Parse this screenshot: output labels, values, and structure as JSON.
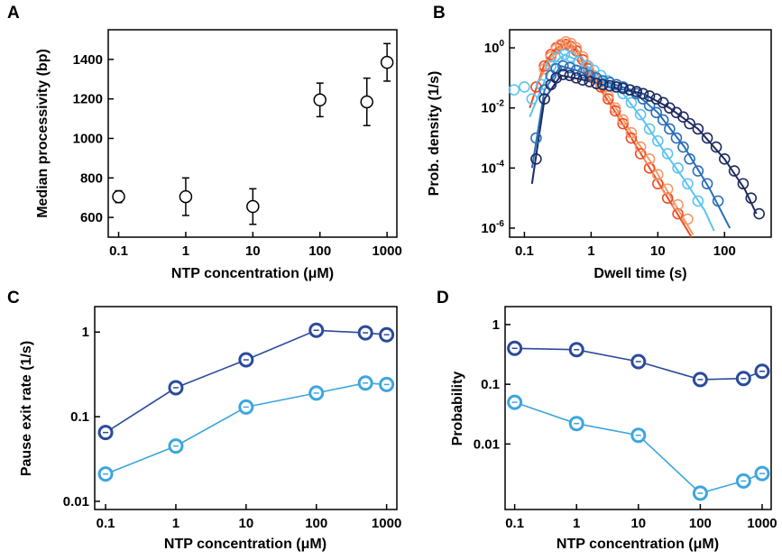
{
  "chart_data": [
    {
      "panel": "A",
      "type": "scatter",
      "xlabel": "NTP concentration (μM)",
      "ylabel": "Median processivity (bp)",
      "xscale": "log",
      "xlim": [
        0.07,
        1400
      ],
      "ylim": [
        500,
        1550
      ],
      "xticks": [
        0.1,
        1,
        10,
        100,
        1000
      ],
      "xtick_labels": [
        "0.1",
        "1",
        "10",
        "100",
        "1000"
      ],
      "yticks": [
        600,
        800,
        1000,
        1200,
        1400
      ],
      "ytick_labels": [
        "600",
        "800",
        "1000",
        "1200",
        "1400"
      ],
      "series": [
        {
          "x": [
            0.1,
            1,
            10,
            100,
            500,
            1000
          ],
          "y": [
            705,
            705,
            655,
            1195,
            1185,
            1385
          ],
          "yerr": [
            30,
            95,
            90,
            85,
            120,
            95
          ],
          "color": "#000000"
        }
      ]
    },
    {
      "panel": "B",
      "type": "scatter",
      "xlabel": "Dwell time (s)",
      "ylabel": "Prob. density (1/s)",
      "xscale": "log",
      "yscale": "log",
      "xlim": [
        0.06,
        500
      ],
      "ylim": [
        5e-07,
        4
      ],
      "xticks": [
        0.1,
        1,
        10,
        100
      ],
      "xtick_labels": [
        "0.1",
        "1",
        "10",
        "100"
      ],
      "yticks": [
        1,
        0.01,
        0.0001,
        1e-06
      ],
      "ytick_labels": [
        {
          "base": "10",
          "exp": "0"
        },
        {
          "base": "10",
          "exp": "-2"
        },
        {
          "base": "10",
          "exp": "-4"
        },
        {
          "base": "10",
          "exp": "-6"
        }
      ],
      "series": [
        {
          "color": "#ef4b24",
          "points": [
            [
              0.15,
              0.05
            ],
            [
              0.2,
              0.25
            ],
            [
              0.25,
              0.6
            ],
            [
              0.3,
              1.0
            ],
            [
              0.35,
              1.2
            ],
            [
              0.42,
              1.3
            ],
            [
              0.5,
              1.1
            ],
            [
              0.6,
              0.8
            ],
            [
              0.75,
              0.4
            ],
            [
              0.9,
              0.2
            ],
            [
              1.1,
              0.1
            ],
            [
              1.4,
              0.05
            ],
            [
              1.8,
              0.02
            ],
            [
              2.3,
              0.008
            ],
            [
              3,
              0.003
            ],
            [
              4,
              0.001
            ],
            [
              5.5,
              0.0003
            ],
            [
              7.5,
              0.0001
            ],
            [
              10,
              3e-05
            ],
            [
              14,
              1e-05
            ],
            [
              20,
              3e-06
            ]
          ],
          "fit": [
            [
              0.12,
              0.01
            ],
            [
              0.2,
              0.3
            ],
            [
              0.3,
              1.0
            ],
            [
              0.42,
              1.3
            ],
            [
              0.6,
              0.8
            ],
            [
              1,
              0.12
            ],
            [
              2,
              0.012
            ],
            [
              4,
              0.001
            ],
            [
              8,
              8e-05
            ],
            [
              15,
              8e-06
            ],
            [
              32,
              5e-07
            ]
          ]
        },
        {
          "color": "#f29a6a",
          "points": [
            [
              0.2,
              0.2
            ],
            [
              0.25,
              0.5
            ],
            [
              0.3,
              0.9
            ],
            [
              0.35,
              1.3
            ],
            [
              0.42,
              1.6
            ],
            [
              0.5,
              1.4
            ],
            [
              0.6,
              1.0
            ],
            [
              0.75,
              0.5
            ],
            [
              0.9,
              0.25
            ],
            [
              1.1,
              0.12
            ],
            [
              1.4,
              0.06
            ],
            [
              1.8,
              0.025
            ],
            [
              2.3,
              0.01
            ],
            [
              3,
              0.004
            ],
            [
              4,
              0.0015
            ],
            [
              5.5,
              0.0005
            ],
            [
              7.5,
              0.0002
            ],
            [
              10,
              6e-05
            ],
            [
              14,
              2e-05
            ],
            [
              20,
              6e-06
            ],
            [
              28,
              2e-06
            ]
          ],
          "fit": [
            [
              0.15,
              0.05
            ],
            [
              0.25,
              0.5
            ],
            [
              0.4,
              1.5
            ],
            [
              0.6,
              1.0
            ],
            [
              1,
              0.15
            ],
            [
              2,
              0.018
            ],
            [
              4,
              0.0015
            ],
            [
              8,
              0.00015
            ],
            [
              16,
              1e-05
            ],
            [
              34,
              6e-07
            ]
          ]
        },
        {
          "color": "#5bc4f0",
          "points": [
            [
              0.07,
              0.04
            ],
            [
              0.1,
              0.05
            ],
            [
              0.13,
              0.02
            ],
            [
              0.18,
              0.06
            ],
            [
              0.25,
              0.25
            ],
            [
              0.32,
              0.5
            ],
            [
              0.4,
              0.6
            ],
            [
              0.5,
              0.5
            ],
            [
              0.65,
              0.35
            ],
            [
              0.85,
              0.25
            ],
            [
              1.1,
              0.18
            ],
            [
              1.4,
              0.12
            ],
            [
              1.8,
              0.08
            ],
            [
              2.3,
              0.05
            ],
            [
              3,
              0.03
            ],
            [
              4,
              0.015
            ],
            [
              5.5,
              0.006
            ],
            [
              7.5,
              0.002
            ],
            [
              10,
              0.0008
            ],
            [
              14,
              0.0003
            ],
            [
              20,
              0.0001
            ],
            [
              28,
              3e-05
            ],
            [
              40,
              8e-06
            ]
          ],
          "fit": [
            [
              0.12,
              0.005
            ],
            [
              0.25,
              0.25
            ],
            [
              0.4,
              0.6
            ],
            [
              0.7,
              0.35
            ],
            [
              1.5,
              0.1
            ],
            [
              3,
              0.03
            ],
            [
              6,
              0.004
            ],
            [
              12,
              0.0004
            ],
            [
              25,
              4e-05
            ],
            [
              50,
              4e-06
            ],
            [
              70,
              8e-07
            ]
          ]
        },
        {
          "color": "#2a6fb8",
          "points": [
            [
              0.15,
              0.001
            ],
            [
              0.2,
              0.04
            ],
            [
              0.25,
              0.12
            ],
            [
              0.3,
              0.2
            ],
            [
              0.38,
              0.25
            ],
            [
              0.48,
              0.22
            ],
            [
              0.6,
              0.18
            ],
            [
              0.75,
              0.15
            ],
            [
              0.95,
              0.12
            ],
            [
              1.2,
              0.1
            ],
            [
              1.5,
              0.08
            ],
            [
              1.9,
              0.07
            ],
            [
              2.4,
              0.06
            ],
            [
              3,
              0.05
            ],
            [
              3.8,
              0.04
            ],
            [
              4.8,
              0.03
            ],
            [
              6,
              0.02
            ],
            [
              7.5,
              0.012
            ],
            [
              9.5,
              0.007
            ],
            [
              12,
              0.004
            ],
            [
              15,
              0.002
            ],
            [
              19,
              0.001
            ],
            [
              24,
              0.0005
            ],
            [
              30,
              0.0002
            ],
            [
              40,
              8e-05
            ],
            [
              55,
              3e-05
            ],
            [
              80,
              8e-06
            ]
          ],
          "fit": [
            [
              0.13,
              0.0001
            ],
            [
              0.2,
              0.04
            ],
            [
              0.35,
              0.25
            ],
            [
              0.6,
              0.18
            ],
            [
              1.5,
              0.08
            ],
            [
              4,
              0.04
            ],
            [
              10,
              0.007
            ],
            [
              25,
              0.0005
            ],
            [
              60,
              2e-05
            ],
            [
              120,
              1e-06
            ]
          ]
        },
        {
          "color": "#1d2a60",
          "points": [
            [
              0.15,
              0.0002
            ],
            [
              0.2,
              0.02
            ],
            [
              0.25,
              0.06
            ],
            [
              0.3,
              0.1
            ],
            [
              0.38,
              0.13
            ],
            [
              0.48,
              0.12
            ],
            [
              0.6,
              0.1
            ],
            [
              0.75,
              0.085
            ],
            [
              0.95,
              0.075
            ],
            [
              1.2,
              0.065
            ],
            [
              1.5,
              0.06
            ],
            [
              1.9,
              0.055
            ],
            [
              2.4,
              0.05
            ],
            [
              3,
              0.045
            ],
            [
              3.8,
              0.04
            ],
            [
              4.8,
              0.035
            ],
            [
              6,
              0.03
            ],
            [
              7.5,
              0.025
            ],
            [
              9.5,
              0.02
            ],
            [
              12,
              0.015
            ],
            [
              15,
              0.01
            ],
            [
              19,
              0.007
            ],
            [
              24,
              0.005
            ],
            [
              30,
              0.003
            ],
            [
              40,
              0.002
            ],
            [
              55,
              0.001
            ],
            [
              75,
              0.0005
            ],
            [
              100,
              0.0002
            ],
            [
              140,
              8e-05
            ],
            [
              190,
              3e-05
            ],
            [
              250,
              1e-05
            ],
            [
              330,
              3e-06
            ]
          ],
          "fit": [
            [
              0.13,
              3e-05
            ],
            [
              0.2,
              0.02
            ],
            [
              0.35,
              0.12
            ],
            [
              0.7,
              0.09
            ],
            [
              2,
              0.05
            ],
            [
              6,
              0.03
            ],
            [
              15,
              0.01
            ],
            [
              40,
              0.002
            ],
            [
              100,
              0.0002
            ],
            [
              200,
              2e-05
            ],
            [
              300,
              3e-06
            ]
          ]
        }
      ]
    },
    {
      "panel": "C",
      "type": "line",
      "xlabel": "NTP concentration (μM)",
      "ylabel": "Pause exit rate (1/s)",
      "xscale": "log",
      "yscale": "log",
      "xlim": [
        0.07,
        1400
      ],
      "ylim": [
        0.008,
        2
      ],
      "xticks": [
        0.1,
        1,
        10,
        100,
        1000
      ],
      "xtick_labels": [
        "0.1",
        "1",
        "10",
        "100",
        "1000"
      ],
      "yticks": [
        0.01,
        0.1,
        1
      ],
      "ytick_labels": [
        "0.01",
        "0.1",
        "1"
      ],
      "series": [
        {
          "color": "#2a4a9a",
          "x": [
            0.1,
            1,
            10,
            100,
            500,
            1000
          ],
          "y": [
            0.065,
            0.22,
            0.47,
            1.05,
            0.98,
            0.93
          ]
        },
        {
          "color": "#3da5de",
          "x": [
            0.1,
            1,
            10,
            100,
            500,
            1000
          ],
          "y": [
            0.021,
            0.045,
            0.13,
            0.19,
            0.25,
            0.24
          ]
        }
      ]
    },
    {
      "panel": "D",
      "type": "line",
      "xlabel": "NTP concentration (μM)",
      "ylabel": "Probability",
      "xscale": "log",
      "yscale": "log",
      "xlim": [
        0.07,
        1400
      ],
      "ylim": [
        0.0008,
        2
      ],
      "xticks": [
        0.1,
        1,
        10,
        100,
        1000
      ],
      "xtick_labels": [
        "0.1",
        "1",
        "10",
        "100",
        "1000"
      ],
      "yticks": [
        0.01,
        0.1,
        1
      ],
      "ytick_labels": [
        "0.01",
        "0.1",
        "1"
      ],
      "series": [
        {
          "color": "#2a4a9a",
          "x": [
            0.1,
            1,
            10,
            100,
            500,
            1000
          ],
          "y": [
            0.4,
            0.38,
            0.24,
            0.12,
            0.125,
            0.165
          ]
        },
        {
          "color": "#3da5de",
          "x": [
            0.1,
            1,
            10,
            100,
            500,
            1000
          ],
          "y": [
            0.05,
            0.022,
            0.014,
            0.0015,
            0.0024,
            0.0032
          ]
        }
      ]
    }
  ]
}
